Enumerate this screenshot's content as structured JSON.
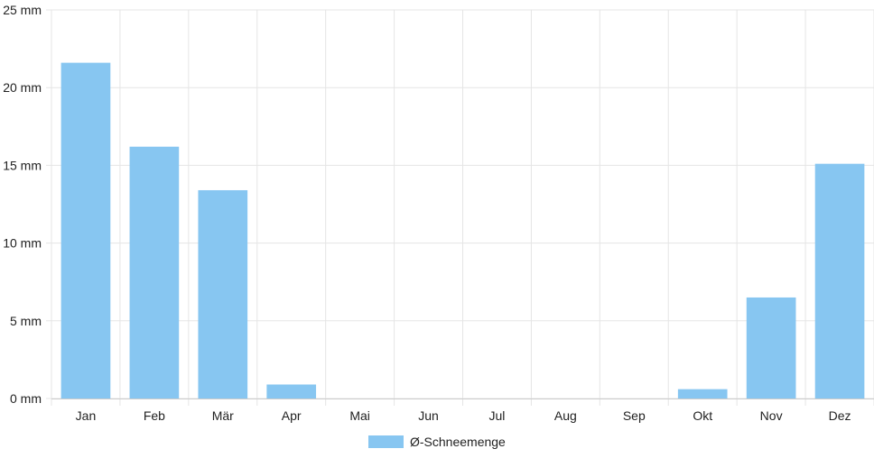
{
  "chart_data": {
    "type": "bar",
    "categories": [
      "Jan",
      "Feb",
      "Mär",
      "Apr",
      "Mai",
      "Jun",
      "Jul",
      "Aug",
      "Sep",
      "Okt",
      "Nov",
      "Dez"
    ],
    "series": [
      {
        "name": "Ø-Schneemenge",
        "values": [
          21.6,
          16.2,
          13.4,
          0.9,
          0,
          0,
          0,
          0,
          0,
          0.6,
          6.5,
          15.1
        ],
        "color": "#87c6f1"
      }
    ],
    "y_ticks": [
      "0 mm",
      "5 mm",
      "10 mm",
      "15 mm",
      "20 mm",
      "25 mm"
    ],
    "ylim": [
      0,
      25
    ],
    "grid": true,
    "legend_position": "bottom-center",
    "grid_color": "#e5e5e5",
    "axis_color": "#cccccc"
  }
}
